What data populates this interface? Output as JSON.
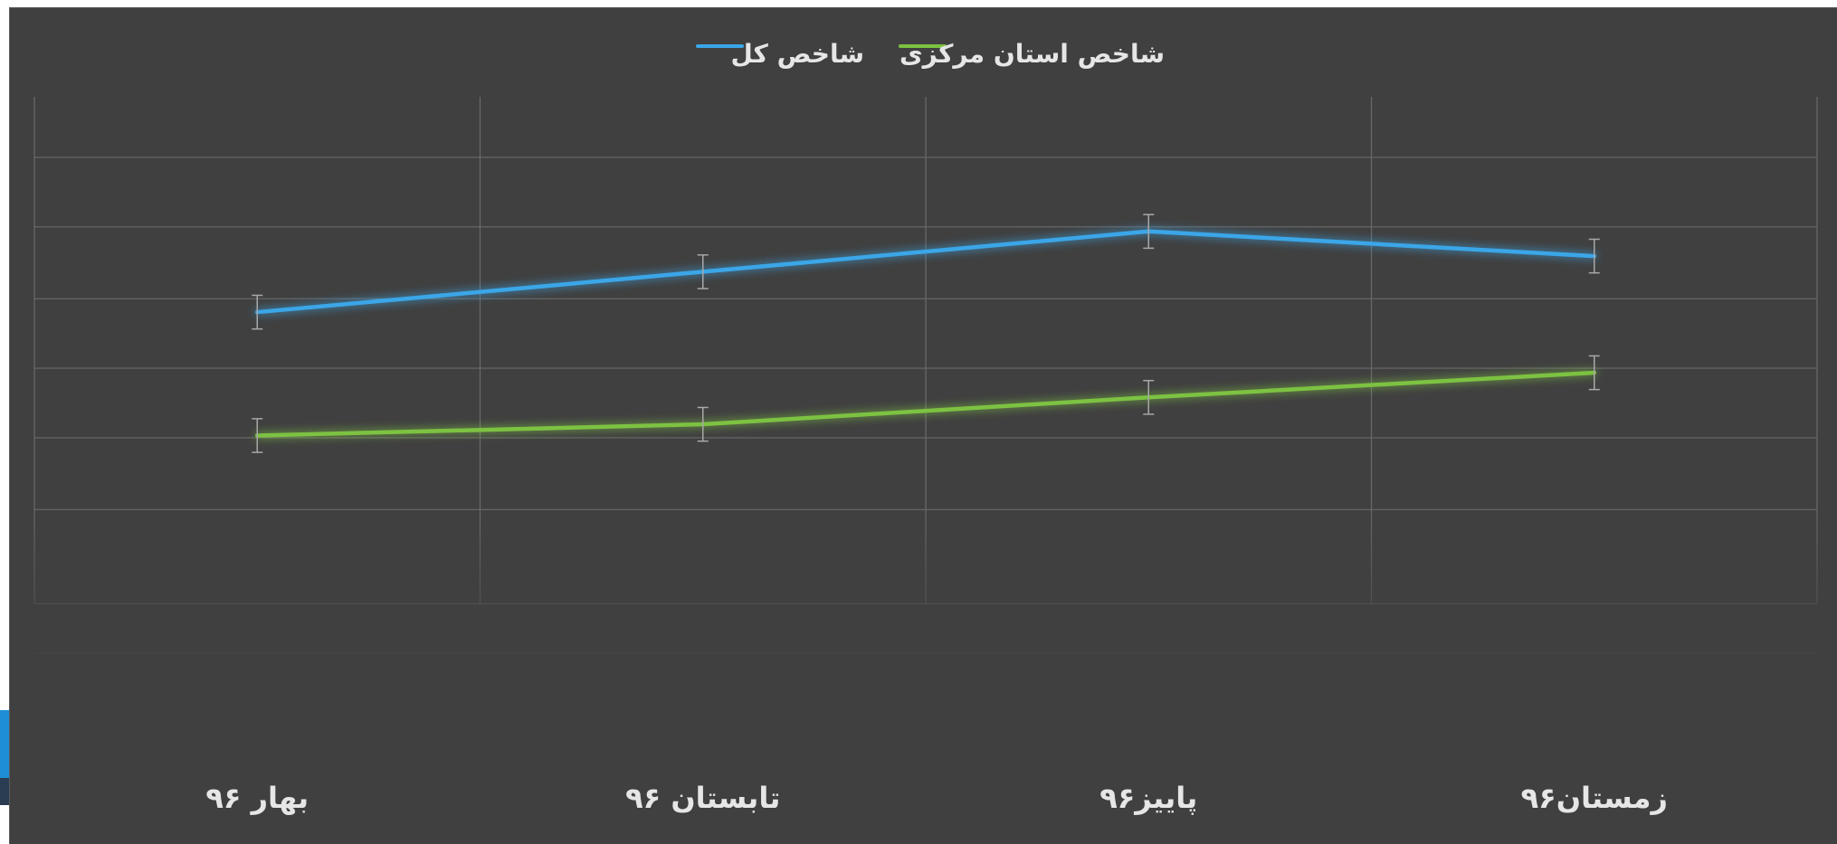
{
  "chart_data": {
    "type": "line",
    "categories": [
      "بهار ۹۶",
      "تابستان ۹۶",
      "پاییز۹۶",
      "زمستان۹۶"
    ],
    "series": [
      {
        "name": "شاخص کل",
        "color": "#3aa6e8",
        "values": [
          128,
          146,
          164,
          153
        ],
        "error": 7.5
      },
      {
        "name": "شاخص استان مرکزی",
        "color": "#7dc242",
        "values": [
          73,
          78,
          90,
          101
        ],
        "error": 7.5
      }
    ],
    "ylim": [
      -24,
      224
    ],
    "gridlines": [
      -24,
      -2,
      40,
      72,
      103,
      134,
      166,
      197
    ],
    "grid": true,
    "legend_position": "top-center",
    "background": "#404040",
    "grid_color": "#6a6a6a",
    "errorbar_color": "#a8a8a8",
    "text_color": "#e6e6e6"
  }
}
